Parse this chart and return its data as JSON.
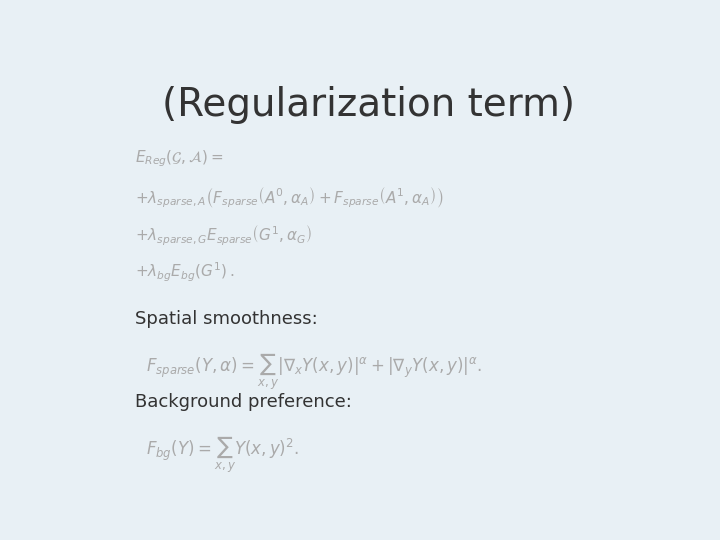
{
  "title": "(Regularization term)",
  "title_fontsize": 28,
  "title_color": "#333333",
  "bg_color": "#e8f0f5",
  "text_color": "#aaaaaa",
  "label_color": "#333333",
  "eq1_lines": [
    "$E_{Reg}(\\mathcal{G}, \\mathcal{A}) = $",
    "$+ \\lambda_{sparse,A}\\left(F_{sparse}\\left(A^0, \\alpha_A\\right) + F_{sparse}\\left(A^1, \\alpha_A\\right)\\right)$",
    "$+ \\lambda_{sparse,G} E_{sparse}\\left(G^1, \\alpha_G\\right)$",
    "$+ \\lambda_{bg} E_{bg}\\left(G^1\\right)\\,.$"
  ],
  "spatial_label": "Spatial smoothness:",
  "spatial_eq": "$F_{sparse}(Y, \\alpha) = \\sum_{x,y} |\\nabla_x Y(x,y)|^\\alpha + |\\nabla_y Y(x,y)|^\\alpha.$",
  "bg_label": "Background preference:",
  "bg_eq": "$F_{bg}(Y) = \\sum_{x,y} Y(x,y)^2.$"
}
